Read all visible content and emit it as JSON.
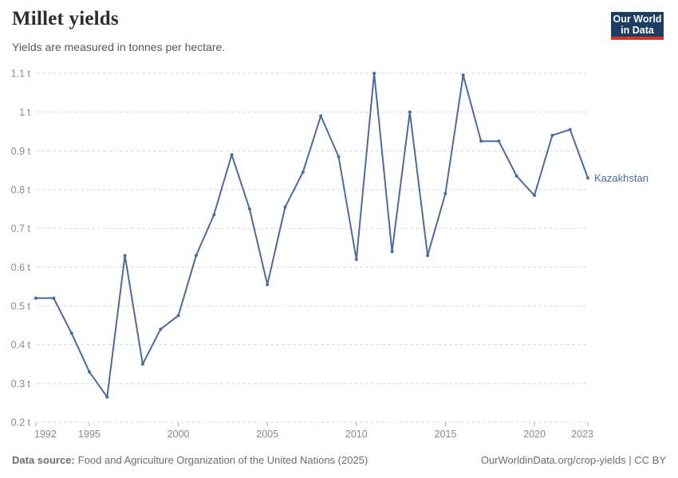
{
  "header": {
    "title": "Millet yields",
    "subtitle": "Yields are measured in tonnes per hectare.",
    "logo": {
      "line1": "Our World",
      "line2": "in Data"
    }
  },
  "chart_data": {
    "type": "line",
    "title": "Millet yields",
    "subtitle": "Yields are measured in tonnes per hectare.",
    "unit": "tonnes per hectare",
    "x": [
      1992,
      1993,
      1994,
      1995,
      1996,
      1997,
      1998,
      1999,
      2000,
      2001,
      2002,
      2003,
      2004,
      2005,
      2006,
      2007,
      2008,
      2009,
      2010,
      2011,
      2012,
      2013,
      2014,
      2015,
      2016,
      2017,
      2018,
      2019,
      2020,
      2021,
      2022,
      2023
    ],
    "series": [
      {
        "name": "Kazakhstan",
        "values": [
          0.52,
          0.52,
          0.43,
          0.33,
          0.265,
          0.63,
          0.35,
          0.44,
          0.475,
          0.63,
          0.735,
          0.89,
          0.75,
          0.555,
          0.755,
          0.845,
          0.99,
          0.885,
          0.62,
          1.1,
          0.64,
          1.0,
          0.63,
          0.79,
          1.095,
          0.925,
          0.925,
          0.835,
          0.785,
          0.94,
          0.955,
          0.83
        ]
      }
    ],
    "xlabel": "",
    "ylabel": "",
    "ylim": [
      0.2,
      1.1
    ],
    "xlim": [
      1992,
      2023
    ],
    "yticks": [
      0.2,
      0.3,
      0.4,
      0.5,
      0.6,
      0.7,
      0.8,
      0.9,
      1.0,
      1.1
    ],
    "ytick_labels": [
      "0.2 t",
      "0.3 t",
      "0.4 t",
      "0.5 t",
      "0.6 t",
      "0.7 t",
      "0.8 t",
      "0.9 t",
      "1 t",
      "1.1 t"
    ],
    "xticks": [
      1992,
      1995,
      2000,
      2005,
      2010,
      2015,
      2020,
      2023
    ],
    "grid": "horizontal-dashed",
    "legend_position": "end-of-line-label"
  },
  "footer": {
    "datasource_label": "Data source:",
    "datasource_value": "Food and Agriculture Organization of the United Nations (2025)",
    "rights": "OurWorldinData.org/crop-yields | CC BY"
  },
  "colors": {
    "line": "#4C6A9C",
    "entity_label": "#4C6A9C",
    "grid": "#dadada",
    "tick_mark": "#a8a8a8",
    "axis_text": "#8a8a8a",
    "title": "#2d2d2d",
    "subtitle": "#595959",
    "footer": "#6e6e6e",
    "logo_bg": "#1d3d63",
    "logo_red": "#dc3220",
    "background": "#ffffff"
  }
}
